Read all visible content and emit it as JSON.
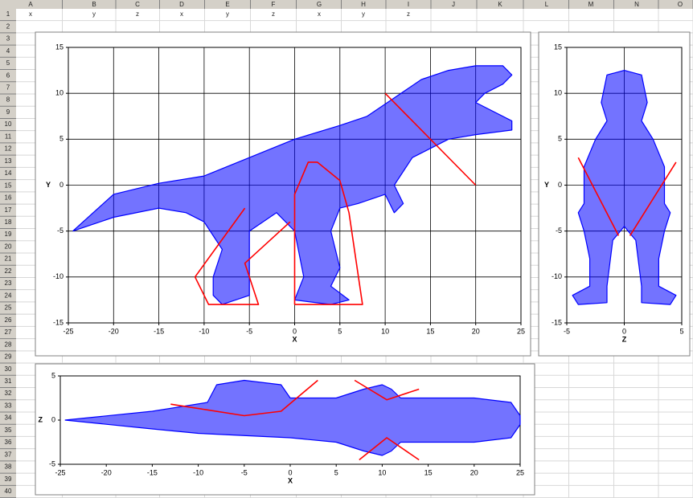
{
  "sheet": {
    "columns": [
      "A",
      "B",
      "C",
      "D",
      "E",
      "F",
      "G",
      "H",
      "I",
      "J",
      "K",
      "L",
      "M",
      "N",
      "O"
    ],
    "rows": [
      1,
      2,
      3,
      4,
      5,
      6,
      7,
      8,
      9,
      10,
      11,
      12,
      13,
      14,
      15,
      16,
      17,
      18,
      19,
      20,
      21,
      22,
      23,
      24,
      25,
      26,
      27,
      28,
      29,
      30,
      31,
      32,
      33,
      34,
      35,
      36,
      37,
      38,
      39,
      40
    ],
    "header_row": [
      "x",
      "y",
      "z",
      "x",
      "y",
      "z",
      "x",
      "y",
      "z"
    ]
  },
  "chart_data": [
    {
      "type": "scatter",
      "xlabel": "X",
      "ylabel": "Y",
      "xlim": [
        -25,
        25
      ],
      "ylim": [
        -15,
        15
      ],
      "xticks": [
        -25,
        -20,
        -15,
        -10,
        -5,
        0,
        5,
        10,
        15,
        20,
        25
      ],
      "yticks": [
        -15,
        -10,
        -5,
        0,
        5,
        10,
        15
      ],
      "grid": true,
      "series": [
        {
          "color": "#0000ff",
          "x": [
            -24.5,
            -20,
            -15,
            -10,
            -5,
            0,
            5,
            8,
            11,
            14,
            17,
            20,
            23,
            24,
            23,
            21,
            20,
            24,
            24,
            20,
            17,
            13,
            11,
            12,
            11,
            10,
            7,
            5,
            4,
            5,
            4,
            6,
            4,
            0,
            1,
            0,
            -2,
            -5,
            -5,
            -5,
            -8,
            -9,
            -9,
            -8,
            -10,
            -12,
            -15,
            -20,
            -24.5
          ],
          "y": [
            -5,
            -1,
            0.2,
            1,
            3,
            5,
            6.5,
            7.5,
            9.5,
            11.5,
            12.5,
            13,
            13,
            12,
            11,
            10,
            9,
            7,
            6,
            5.5,
            5,
            3,
            0,
            -2,
            -3,
            -1,
            -2,
            -2.5,
            -5,
            -9,
            -11,
            -12.5,
            -13,
            -12.5,
            -10,
            -5,
            -3,
            -5,
            -9,
            -12,
            -13,
            -12,
            -10,
            -7,
            -4,
            -3,
            -2.5,
            -3.5,
            -5
          ]
        },
        {
          "color": "#ff0000",
          "x": [
            -5.5,
            -11,
            -9.5,
            -4,
            -5.5,
            -0.5,
            null,
            0,
            0,
            1.5,
            2.5,
            5,
            6,
            7.5,
            0,
            null,
            10,
            20
          ],
          "y": [
            -2.5,
            -10,
            -13,
            -13,
            -8.5,
            -4,
            null,
            -13,
            -1,
            2.5,
            2.5,
            0.5,
            -3,
            -13,
            -13,
            null,
            10,
            0
          ]
        }
      ]
    },
    {
      "type": "scatter",
      "xlabel": "Z",
      "ylabel": "Y",
      "xlim": [
        -5,
        5
      ],
      "ylim": [
        -15,
        15
      ],
      "xticks": [
        -5,
        0,
        5
      ],
      "yticks": [
        -15,
        -10,
        -5,
        0,
        5,
        10,
        15
      ],
      "grid": true,
      "series": [
        {
          "color": "#0000ff",
          "x": [
            0,
            1.5,
            2,
            1.5,
            2.5,
            3.5,
            3.5,
            4,
            3.5,
            3,
            3,
            4.5,
            4,
            1.5,
            1.5,
            1,
            0,
            -1,
            -1.5,
            -1.5,
            -4,
            -4.5,
            -3,
            -3,
            -3.5,
            -4,
            -3.5,
            -3.5,
            -2.5,
            -1.5,
            -2,
            -1.5,
            0
          ],
          "y": [
            12.5,
            12,
            9,
            7,
            5,
            2,
            -2,
            -3,
            -5,
            -8,
            -11,
            -12,
            -13,
            -12.8,
            -11,
            -6,
            -4.5,
            -6,
            -11,
            -12.8,
            -13,
            -12,
            -11,
            -8,
            -5,
            -3,
            -2,
            2,
            5,
            7,
            9,
            12,
            12.5
          ]
        },
        {
          "color": "#ff0000",
          "x": [
            -4,
            -0.5,
            null,
            0.5,
            4.5
          ],
          "y": [
            3,
            -5.5,
            null,
            -5.5,
            2.5
          ]
        }
      ]
    },
    {
      "type": "scatter",
      "xlabel": "X",
      "ylabel": "Z",
      "xlim": [
        -25,
        25
      ],
      "ylim": [
        -5,
        5
      ],
      "xticks": [
        -25,
        -20,
        -15,
        -10,
        -5,
        0,
        5,
        10,
        15,
        20,
        25
      ],
      "yticks": [
        -5,
        0,
        5
      ],
      "grid": false,
      "series": [
        {
          "color": "#0000ff",
          "x": [
            -24.5,
            -15,
            -9,
            -8,
            -5,
            -1,
            0,
            5,
            8,
            10,
            11,
            12,
            15,
            20,
            24,
            25,
            25,
            24,
            20,
            15,
            12,
            11,
            10,
            8,
            5,
            0,
            -10,
            -15,
            -24.5
          ],
          "y": [
            0,
            1,
            2,
            4,
            4.5,
            4,
            2.5,
            2.5,
            3.5,
            4,
            3.5,
            2.5,
            2.5,
            2.5,
            2,
            0.5,
            -0.5,
            -2,
            -2.5,
            -2.5,
            -2.5,
            -3.5,
            -4,
            -3.5,
            -2.5,
            -2,
            -1.5,
            -1,
            0
          ]
        },
        {
          "color": "#ff0000",
          "x": [
            -13,
            -5,
            -1,
            3,
            null,
            7,
            10.5,
            14,
            null,
            7.5,
            10.5,
            14
          ],
          "y": [
            1.8,
            0.5,
            1,
            4.5,
            null,
            4.5,
            2.3,
            3.5,
            null,
            -4.5,
            -2,
            -4.5
          ]
        }
      ]
    }
  ]
}
